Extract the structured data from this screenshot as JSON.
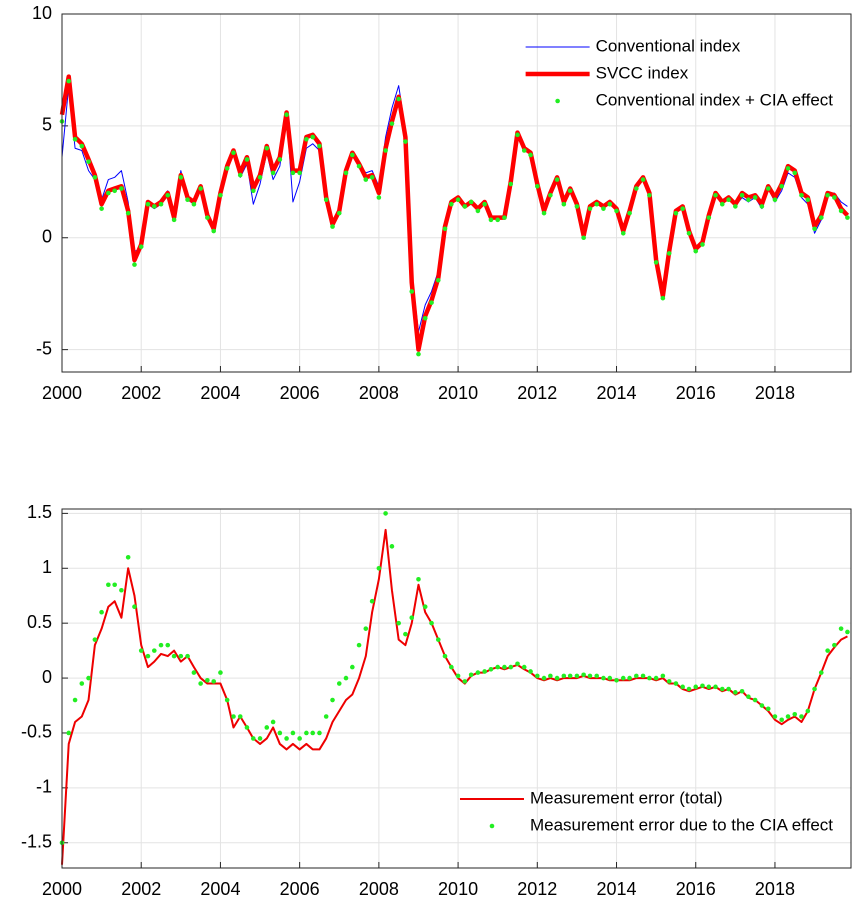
{
  "chart_data": [
    {
      "type": "line",
      "x": [
        2000,
        2000.17,
        2000.33,
        2000.5,
        2000.67,
        2000.83,
        2001,
        2001.17,
        2001.33,
        2001.5,
        2001.67,
        2001.83,
        2002,
        2002.17,
        2002.33,
        2002.5,
        2002.67,
        2002.83,
        2003,
        2003.17,
        2003.33,
        2003.5,
        2003.67,
        2003.83,
        2004,
        2004.17,
        2004.33,
        2004.5,
        2004.67,
        2004.83,
        2005,
        2005.17,
        2005.33,
        2005.5,
        2005.67,
        2005.83,
        2006,
        2006.17,
        2006.33,
        2006.5,
        2006.67,
        2006.83,
        2007,
        2007.17,
        2007.33,
        2007.5,
        2007.67,
        2007.83,
        2008,
        2008.17,
        2008.33,
        2008.5,
        2008.67,
        2008.83,
        2009,
        2009.17,
        2009.33,
        2009.5,
        2009.67,
        2009.83,
        2010,
        2010.17,
        2010.33,
        2010.5,
        2010.67,
        2010.83,
        2011,
        2011.17,
        2011.33,
        2011.5,
        2011.67,
        2011.83,
        2012,
        2012.17,
        2012.33,
        2012.5,
        2012.67,
        2012.83,
        2013,
        2013.17,
        2013.33,
        2013.5,
        2013.67,
        2013.83,
        2014,
        2014.17,
        2014.33,
        2014.5,
        2014.67,
        2014.83,
        2015,
        2015.17,
        2015.33,
        2015.5,
        2015.67,
        2015.83,
        2016,
        2016.17,
        2016.33,
        2016.5,
        2016.67,
        2016.83,
        2017,
        2017.17,
        2017.33,
        2017.5,
        2017.67,
        2017.83,
        2018,
        2018.17,
        2018.33,
        2018.5,
        2018.67,
        2018.83,
        2019,
        2019.17,
        2019.33,
        2019.5,
        2019.67,
        2019.83
      ],
      "series": [
        {
          "name": "Conventional index",
          "color": "#0000ff",
          "style": "line",
          "line_width": 1,
          "values": [
            3.6,
            6.8,
            4.0,
            3.9,
            3.0,
            2.6,
            1.7,
            2.6,
            2.7,
            3.0,
            1.6,
            -0.6,
            -0.5,
            1.5,
            1.3,
            1.5,
            2.1,
            0.8,
            3.0,
            1.7,
            1.5,
            2.2,
            0.9,
            0.3,
            1.8,
            3.0,
            3.8,
            2.7,
            3.3,
            1.5,
            2.4,
            3.8,
            2.6,
            3.2,
            5.5,
            1.6,
            2.5,
            4.0,
            4.2,
            3.9,
            1.8,
            0.5,
            1.2,
            3.0,
            3.8,
            3.3,
            2.9,
            3.0,
            2.3,
            4.5,
            5.8,
            6.8,
            4.8,
            -1.6,
            -4.2,
            -3.0,
            -2.4,
            -1.5,
            0.4,
            1.5,
            1.8,
            1.4,
            1.6,
            1.3,
            1.6,
            0.9,
            0.9,
            0.9,
            2.5,
            4.7,
            4.0,
            3.8,
            2.4,
            1.2,
            2.0,
            2.7,
            1.6,
            2.2,
            1.5,
            0.1,
            1.4,
            1.6,
            1.4,
            1.6,
            1.3,
            0.3,
            1.2,
            2.3,
            2.7,
            2.0,
            -1.0,
            -2.6,
            -0.6,
            1.2,
            1.4,
            0.3,
            -0.5,
            -0.2,
            1.0,
            2.0,
            1.6,
            1.8,
            1.4,
            1.8,
            1.6,
            1.8,
            1.3,
            2.2,
            1.6,
            2.1,
            2.9,
            2.7,
            1.8,
            1.5,
            0.2,
            0.8,
            2.0,
            2.0,
            1.6,
            1.4
          ]
        },
        {
          "name": "SVCC index",
          "color": "#ff0000",
          "style": "line",
          "line_width": 4.5,
          "values": [
            5.5,
            7.2,
            4.5,
            4.2,
            3.5,
            2.8,
            1.5,
            2.1,
            2.2,
            2.3,
            1.2,
            -1.0,
            -0.3,
            1.6,
            1.4,
            1.6,
            2.0,
            0.9,
            2.8,
            1.8,
            1.6,
            2.3,
            1.0,
            0.4,
            2.0,
            3.2,
            3.9,
            2.9,
            3.6,
            2.2,
            2.8,
            4.1,
            3.0,
            3.6,
            5.6,
            3.0,
            3.0,
            4.5,
            4.6,
            4.2,
            1.8,
            0.6,
            1.2,
            3.0,
            3.8,
            3.3,
            2.7,
            2.8,
            2.0,
            4.0,
            5.2,
            6.3,
            4.5,
            -2.0,
            -5.0,
            -3.5,
            -2.8,
            -1.8,
            0.5,
            1.6,
            1.8,
            1.4,
            1.6,
            1.3,
            1.6,
            0.9,
            0.9,
            0.9,
            2.5,
            4.7,
            4.0,
            3.8,
            2.4,
            1.2,
            2.0,
            2.7,
            1.6,
            2.2,
            1.5,
            0.1,
            1.4,
            1.6,
            1.4,
            1.6,
            1.3,
            0.3,
            1.2,
            2.3,
            2.7,
            2.0,
            -1.0,
            -2.6,
            -0.6,
            1.2,
            1.4,
            0.3,
            -0.5,
            -0.2,
            1.0,
            2.0,
            1.6,
            1.8,
            1.5,
            2.0,
            1.8,
            1.9,
            1.5,
            2.3,
            1.8,
            2.4,
            3.2,
            3.0,
            2.0,
            1.8,
            0.5,
            1.0,
            2.0,
            1.9,
            1.3,
            1.0
          ]
        },
        {
          "name": "Conventional index + CIA effect",
          "color": "#22ee22",
          "style": "dots",
          "values": [
            5.2,
            7.0,
            4.4,
            4.1,
            3.4,
            2.7,
            1.3,
            2.0,
            2.1,
            2.2,
            1.1,
            -1.2,
            -0.4,
            1.5,
            1.4,
            1.5,
            1.9,
            0.8,
            2.7,
            1.7,
            1.5,
            2.2,
            0.9,
            0.3,
            1.9,
            3.1,
            3.8,
            2.8,
            3.5,
            2.1,
            2.7,
            4.0,
            2.9,
            3.5,
            5.5,
            2.9,
            2.9,
            4.4,
            4.5,
            4.1,
            1.7,
            0.5,
            1.1,
            2.9,
            3.7,
            3.2,
            2.6,
            2.7,
            1.8,
            3.9,
            5.1,
            6.2,
            4.3,
            -2.4,
            -5.2,
            -3.6,
            -2.9,
            -1.9,
            0.4,
            1.5,
            1.7,
            1.4,
            1.6,
            1.2,
            1.5,
            0.8,
            0.8,
            0.9,
            2.4,
            4.6,
            3.9,
            3.7,
            2.3,
            1.1,
            1.9,
            2.6,
            1.5,
            2.1,
            1.4,
            0.0,
            1.3,
            1.5,
            1.3,
            1.5,
            1.2,
            0.2,
            1.1,
            2.2,
            2.6,
            1.9,
            -1.1,
            -2.7,
            -0.7,
            1.1,
            1.3,
            0.2,
            -0.6,
            -0.3,
            0.9,
            1.9,
            1.5,
            1.7,
            1.4,
            1.9,
            1.7,
            1.8,
            1.4,
            2.2,
            1.7,
            2.3,
            3.1,
            2.9,
            1.9,
            1.7,
            0.4,
            0.9,
            1.9,
            1.8,
            1.2,
            0.9
          ]
        }
      ],
      "xlim": [
        2000,
        2019.92
      ],
      "xticks": [
        2000,
        2002,
        2004,
        2006,
        2008,
        2010,
        2012,
        2014,
        2016,
        2018
      ],
      "ylim": [
        -6,
        10
      ],
      "yticks": [
        -5,
        0,
        5,
        10
      ],
      "grid": true,
      "legend": "northeast"
    },
    {
      "type": "line",
      "x": [
        2000,
        2000.17,
        2000.33,
        2000.5,
        2000.67,
        2000.83,
        2001,
        2001.17,
        2001.33,
        2001.5,
        2001.67,
        2001.83,
        2002,
        2002.17,
        2002.33,
        2002.5,
        2002.67,
        2002.83,
        2003,
        2003.17,
        2003.33,
        2003.5,
        2003.67,
        2003.83,
        2004,
        2004.17,
        2004.33,
        2004.5,
        2004.67,
        2004.83,
        2005,
        2005.17,
        2005.33,
        2005.5,
        2005.67,
        2005.83,
        2006,
        2006.17,
        2006.33,
        2006.5,
        2006.67,
        2006.83,
        2007,
        2007.17,
        2007.33,
        2007.5,
        2007.67,
        2007.83,
        2008,
        2008.17,
        2008.33,
        2008.5,
        2008.67,
        2008.83,
        2009,
        2009.17,
        2009.33,
        2009.5,
        2009.67,
        2009.83,
        2010,
        2010.17,
        2010.33,
        2010.5,
        2010.67,
        2010.83,
        2011,
        2011.17,
        2011.33,
        2011.5,
        2011.67,
        2011.83,
        2012,
        2012.17,
        2012.33,
        2012.5,
        2012.67,
        2012.83,
        2013,
        2013.17,
        2013.33,
        2013.5,
        2013.67,
        2013.83,
        2014,
        2014.17,
        2014.33,
        2014.5,
        2014.67,
        2014.83,
        2015,
        2015.17,
        2015.33,
        2015.5,
        2015.67,
        2015.83,
        2016,
        2016.17,
        2016.33,
        2016.5,
        2016.67,
        2016.83,
        2017,
        2017.17,
        2017.33,
        2017.5,
        2017.67,
        2017.83,
        2018,
        2018.17,
        2018.33,
        2018.5,
        2018.67,
        2018.83,
        2019,
        2019.17,
        2019.33,
        2019.5,
        2019.67,
        2019.83
      ],
      "series": [
        {
          "name": "Measurement error (total)",
          "color": "#ee0000",
          "style": "line",
          "line_width": 2,
          "values": [
            -1.7,
            -0.6,
            -0.4,
            -0.35,
            -0.2,
            0.3,
            0.45,
            0.65,
            0.7,
            0.55,
            1.0,
            0.75,
            0.3,
            0.1,
            0.15,
            0.22,
            0.2,
            0.25,
            0.15,
            0.2,
            0.1,
            0.0,
            -0.05,
            -0.05,
            -0.05,
            -0.2,
            -0.45,
            -0.35,
            -0.45,
            -0.55,
            -0.6,
            -0.55,
            -0.45,
            -0.6,
            -0.65,
            -0.6,
            -0.65,
            -0.6,
            -0.65,
            -0.65,
            -0.55,
            -0.4,
            -0.3,
            -0.2,
            -0.15,
            0.0,
            0.2,
            0.6,
            0.9,
            1.35,
            0.8,
            0.35,
            0.3,
            0.5,
            0.85,
            0.6,
            0.5,
            0.35,
            0.2,
            0.1,
            0.0,
            -0.05,
            0.02,
            0.05,
            0.05,
            0.08,
            0.1,
            0.08,
            0.1,
            0.12,
            0.08,
            0.05,
            0.0,
            -0.02,
            0.0,
            -0.02,
            0.0,
            0.0,
            0.0,
            0.02,
            0.0,
            0.0,
            0.0,
            -0.02,
            -0.02,
            -0.02,
            -0.02,
            0.0,
            0.0,
            0.0,
            -0.02,
            0.0,
            -0.05,
            -0.05,
            -0.1,
            -0.12,
            -0.1,
            -0.08,
            -0.1,
            -0.08,
            -0.12,
            -0.1,
            -0.15,
            -0.12,
            -0.18,
            -0.2,
            -0.25,
            -0.3,
            -0.38,
            -0.42,
            -0.38,
            -0.35,
            -0.4,
            -0.3,
            -0.1,
            0.05,
            0.2,
            0.28,
            0.35,
            0.38
          ]
        },
        {
          "name": "Measurement error due to the CIA effect",
          "color": "#22ee22",
          "style": "dots",
          "values": [
            -1.5,
            -0.5,
            -0.2,
            -0.05,
            0.0,
            0.35,
            0.6,
            0.85,
            0.85,
            0.8,
            1.1,
            0.65,
            0.25,
            0.2,
            0.25,
            0.3,
            0.3,
            0.2,
            0.2,
            0.2,
            0.05,
            -0.05,
            -0.02,
            -0.03,
            0.05,
            -0.2,
            -0.35,
            -0.35,
            -0.45,
            -0.55,
            -0.55,
            -0.45,
            -0.4,
            -0.5,
            -0.55,
            -0.5,
            -0.55,
            -0.5,
            -0.5,
            -0.5,
            -0.35,
            -0.2,
            -0.05,
            0.0,
            0.1,
            0.3,
            0.45,
            0.7,
            1.0,
            1.5,
            1.2,
            0.5,
            0.4,
            0.55,
            0.9,
            0.65,
            0.5,
            0.35,
            0.2,
            0.1,
            0.02,
            -0.03,
            0.03,
            0.05,
            0.06,
            0.08,
            0.1,
            0.1,
            0.1,
            0.13,
            0.1,
            0.06,
            0.02,
            0.0,
            0.02,
            0.0,
            0.02,
            0.02,
            0.02,
            0.03,
            0.02,
            0.02,
            0.0,
            0.0,
            -0.02,
            0.0,
            0.0,
            0.02,
            0.02,
            0.0,
            0.0,
            0.02,
            -0.03,
            -0.05,
            -0.08,
            -0.1,
            -0.08,
            -0.07,
            -0.08,
            -0.08,
            -0.1,
            -0.1,
            -0.13,
            -0.12,
            -0.17,
            -0.2,
            -0.25,
            -0.28,
            -0.35,
            -0.38,
            -0.35,
            -0.33,
            -0.35,
            -0.3,
            -0.1,
            0.05,
            0.25,
            0.3,
            0.45,
            0.42
          ]
        }
      ],
      "xlim": [
        2000,
        2019.92
      ],
      "xticks": [
        2000,
        2002,
        2004,
        2006,
        2008,
        2010,
        2012,
        2014,
        2016,
        2018
      ],
      "ylim": [
        -1.73,
        1.54
      ],
      "yticks": [
        -1.5,
        -1,
        -0.5,
        0,
        0.5,
        1,
        1.5
      ],
      "grid": true,
      "legend": "southeast"
    }
  ]
}
